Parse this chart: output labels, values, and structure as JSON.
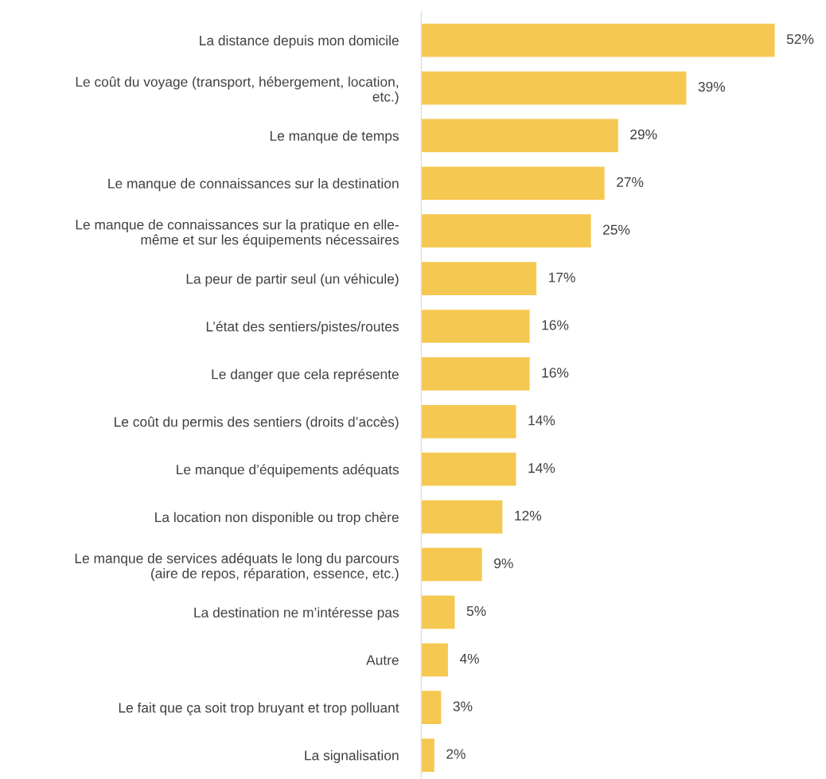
{
  "chart_data": {
    "type": "bar",
    "orientation": "horizontal",
    "categories": [
      "La distance depuis mon domicile",
      "Le coût du voyage (transport, hébergement, location,\netc.)",
      "Le manque de temps",
      "Le manque de connaissances sur la destination",
      "Le manque de connaissances sur la pratique en elle-\nmême et sur les équipements nécessaires",
      "La peur de partir seul (un véhicule)",
      "L’état des sentiers/pistes/routes",
      "Le danger que cela représente",
      "Le coût du permis des sentiers (droits d’accès)",
      "Le manque d’équipements adéquats",
      "La location non disponible ou trop chère",
      "Le manque de services adéquats le long du parcours\n(aire de repos, réparation, essence, etc.)",
      "La destination ne m’intéresse pas",
      "Autre",
      "Le fait que ça soit trop bruyant et trop polluant",
      "La signalisation"
    ],
    "values": [
      52,
      39,
      29,
      27,
      25,
      17,
      16,
      16,
      14,
      14,
      12,
      9,
      5,
      4,
      3,
      2
    ],
    "value_labels": [
      "52%",
      "39%",
      "29%",
      "27%",
      "25%",
      "17%",
      "16%",
      "16%",
      "14%",
      "14%",
      "12%",
      "9%",
      "5%",
      "4%",
      "3%",
      "2%"
    ],
    "color": "#f5c851",
    "grid": false,
    "legend": false
  }
}
